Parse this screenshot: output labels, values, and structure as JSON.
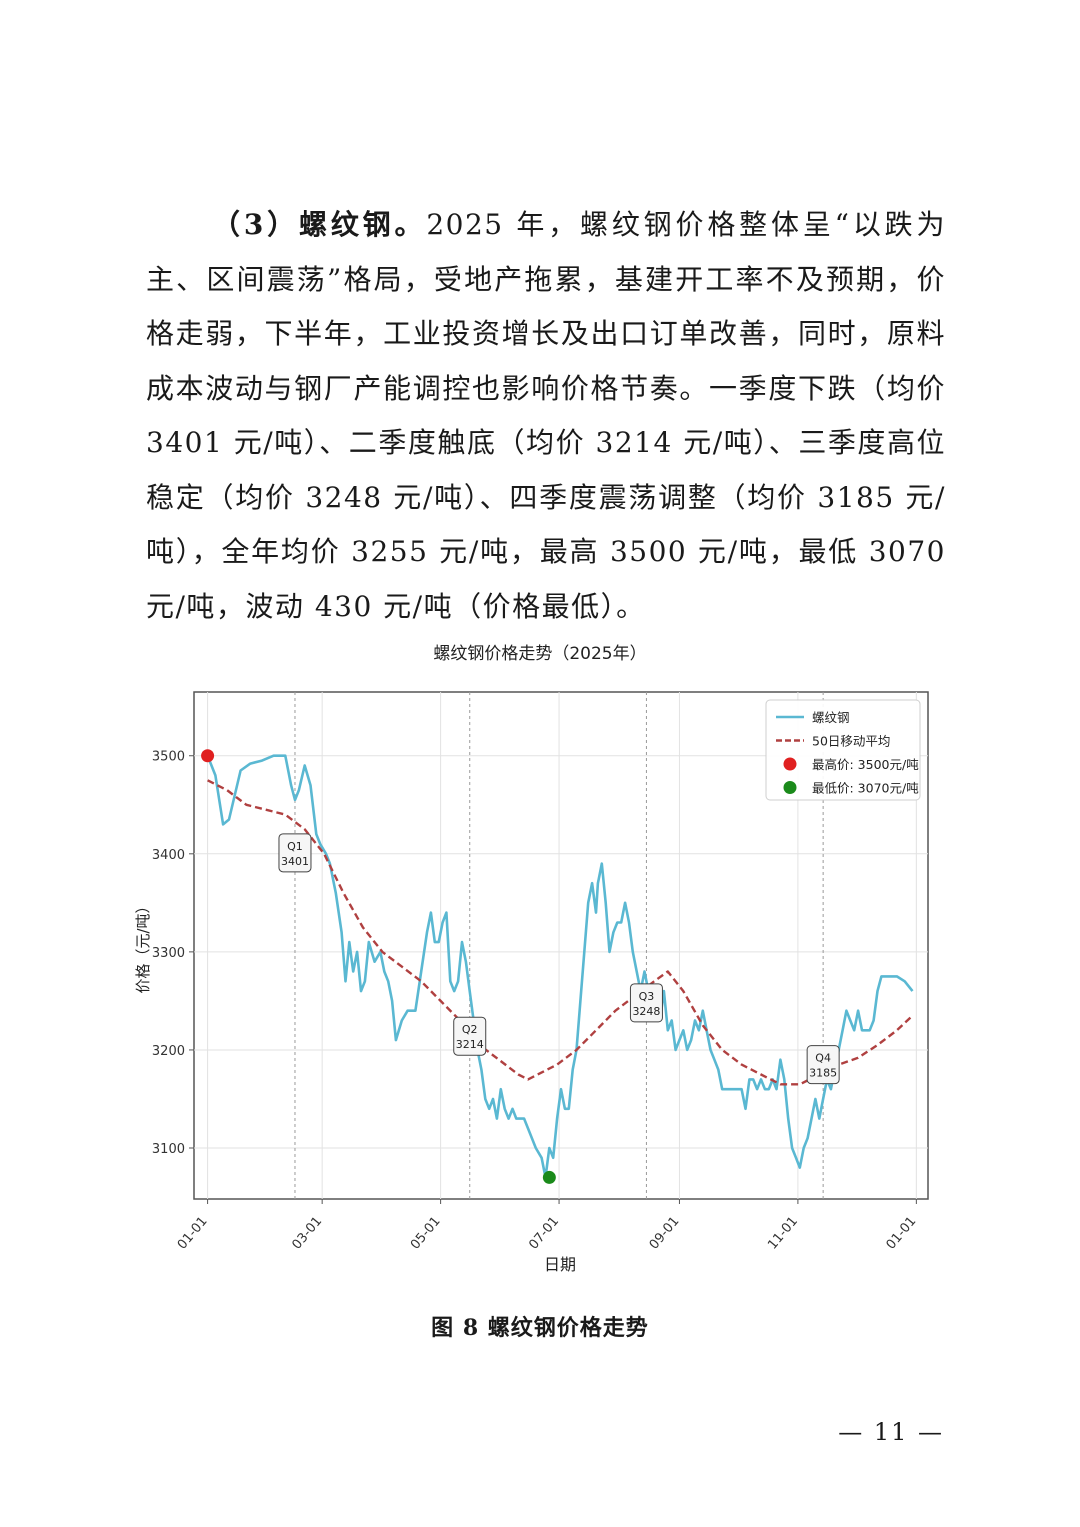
{
  "paragraph": {
    "lead": "（3）螺纹钢。",
    "body": "2025 年，螺纹钢价格整体呈“以跌为主、区间震荡”格局，受地产拖累，基建开工率不及预期，价格走弱，下半年，工业投资增长及出口订单改善，同时，原料成本波动与钢厂产能调控也影响价格节奏。一季度下跌（均价 3401 元/吨）、二季度触底（均价 3214 元/吨）、三季度高位稳定（均价 3248 元/吨）、四季度震荡调整（均价 3185 元/吨），全年均价 3255 元/吨，最高 3500 元/吨，最低 3070 元/吨，波动 430 元/吨（价格最低）。"
  },
  "caption": "图 8   螺纹钢价格走势",
  "page_number": "— 11 —",
  "chart_data": {
    "type": "line",
    "title": "螺纹钢价格走势（2025年）",
    "xlabel": "日期",
    "ylabel": "价格（元/吨）",
    "ylim": [
      3048,
      3565
    ],
    "xlim_days": [
      -7,
      371
    ],
    "x_ticks": [
      {
        "label": "01-01",
        "day": 0
      },
      {
        "label": "03-01",
        "day": 59
      },
      {
        "label": "05-01",
        "day": 120
      },
      {
        "label": "07-01",
        "day": 181
      },
      {
        "label": "09-01",
        "day": 243
      },
      {
        "label": "11-01",
        "day": 304
      },
      {
        "label": "01-01",
        "day": 365
      }
    ],
    "y_ticks": [
      3100,
      3200,
      3300,
      3400,
      3500
    ],
    "grid": true,
    "legend_position": "top-right",
    "series": [
      {
        "name": "螺纹钢",
        "color": "#5ab8d2",
        "points": [
          [
            0,
            3500
          ],
          [
            4,
            3480
          ],
          [
            8,
            3430
          ],
          [
            11,
            3435
          ],
          [
            14,
            3460
          ],
          [
            17,
            3485
          ],
          [
            22,
            3492
          ],
          [
            28,
            3495
          ],
          [
            34,
            3500
          ],
          [
            40,
            3500
          ],
          [
            43,
            3470
          ],
          [
            45,
            3455
          ],
          [
            47,
            3465
          ],
          [
            50,
            3490
          ],
          [
            53,
            3470
          ],
          [
            56,
            3420
          ],
          [
            58,
            3410
          ],
          [
            61,
            3400
          ],
          [
            63,
            3390
          ],
          [
            66,
            3360
          ],
          [
            69,
            3320
          ],
          [
            71,
            3270
          ],
          [
            73,
            3310
          ],
          [
            75,
            3280
          ],
          [
            77,
            3300
          ],
          [
            79,
            3260
          ],
          [
            81,
            3270
          ],
          [
            83,
            3310
          ],
          [
            86,
            3290
          ],
          [
            89,
            3300
          ],
          [
            91,
            3280
          ],
          [
            93,
            3270
          ],
          [
            95,
            3250
          ],
          [
            97,
            3210
          ],
          [
            100,
            3230
          ],
          [
            103,
            3240
          ],
          [
            107,
            3240
          ],
          [
            110,
            3280
          ],
          [
            113,
            3320
          ],
          [
            115,
            3340
          ],
          [
            117,
            3310
          ],
          [
            119,
            3310
          ],
          [
            121,
            3330
          ],
          [
            123,
            3340
          ],
          [
            125,
            3270
          ],
          [
            127,
            3260
          ],
          [
            129,
            3270
          ],
          [
            131,
            3310
          ],
          [
            133,
            3290
          ],
          [
            135,
            3260
          ],
          [
            137,
            3230
          ],
          [
            139,
            3200
          ],
          [
            141,
            3180
          ],
          [
            143,
            3150
          ],
          [
            145,
            3140
          ],
          [
            147,
            3150
          ],
          [
            149,
            3130
          ],
          [
            151,
            3160
          ],
          [
            153,
            3140
          ],
          [
            155,
            3130
          ],
          [
            157,
            3140
          ],
          [
            159,
            3130
          ],
          [
            161,
            3130
          ],
          [
            163,
            3130
          ],
          [
            165,
            3120
          ],
          [
            167,
            3110
          ],
          [
            169,
            3100
          ],
          [
            172,
            3090
          ],
          [
            174,
            3070
          ],
          [
            176,
            3100
          ],
          [
            178,
            3090
          ],
          [
            180,
            3130
          ],
          [
            182,
            3160
          ],
          [
            184,
            3140
          ],
          [
            186,
            3140
          ],
          [
            188,
            3180
          ],
          [
            190,
            3200
          ],
          [
            192,
            3250
          ],
          [
            194,
            3300
          ],
          [
            196,
            3350
          ],
          [
            198,
            3370
          ],
          [
            200,
            3340
          ],
          [
            201,
            3370
          ],
          [
            203,
            3390
          ],
          [
            205,
            3350
          ],
          [
            207,
            3300
          ],
          [
            209,
            3320
          ],
          [
            211,
            3330
          ],
          [
            213,
            3330
          ],
          [
            215,
            3350
          ],
          [
            217,
            3330
          ],
          [
            219,
            3300
          ],
          [
            221,
            3280
          ],
          [
            223,
            3260
          ],
          [
            225,
            3280
          ],
          [
            227,
            3260
          ],
          [
            229,
            3250
          ],
          [
            231,
            3240
          ],
          [
            233,
            3230
          ],
          [
            235,
            3260
          ],
          [
            237,
            3220
          ],
          [
            239,
            3230
          ],
          [
            241,
            3200
          ],
          [
            243,
            3210
          ],
          [
            245,
            3220
          ],
          [
            247,
            3200
          ],
          [
            249,
            3210
          ],
          [
            251,
            3230
          ],
          [
            253,
            3220
          ],
          [
            255,
            3240
          ],
          [
            257,
            3220
          ],
          [
            259,
            3200
          ],
          [
            261,
            3190
          ],
          [
            263,
            3180
          ],
          [
            265,
            3160
          ],
          [
            267,
            3160
          ],
          [
            269,
            3160
          ],
          [
            271,
            3160
          ],
          [
            273,
            3160
          ],
          [
            275,
            3160
          ],
          [
            277,
            3140
          ],
          [
            279,
            3170
          ],
          [
            281,
            3170
          ],
          [
            283,
            3160
          ],
          [
            285,
            3170
          ],
          [
            287,
            3160
          ],
          [
            289,
            3160
          ],
          [
            291,
            3170
          ],
          [
            293,
            3160
          ],
          [
            295,
            3190
          ],
          [
            297,
            3170
          ],
          [
            299,
            3130
          ],
          [
            301,
            3100
          ],
          [
            303,
            3090
          ],
          [
            305,
            3080
          ],
          [
            307,
            3100
          ],
          [
            309,
            3110
          ],
          [
            311,
            3130
          ],
          [
            313,
            3150
          ],
          [
            315,
            3130
          ],
          [
            317,
            3150
          ],
          [
            319,
            3170
          ],
          [
            321,
            3160
          ],
          [
            323,
            3180
          ],
          [
            325,
            3200
          ],
          [
            327,
            3220
          ],
          [
            329,
            3240
          ],
          [
            331,
            3230
          ],
          [
            333,
            3220
          ],
          [
            335,
            3240
          ],
          [
            337,
            3220
          ],
          [
            339,
            3220
          ],
          [
            341,
            3220
          ],
          [
            343,
            3230
          ],
          [
            345,
            3260
          ],
          [
            347,
            3275
          ],
          [
            351,
            3275
          ],
          [
            355,
            3275
          ],
          [
            359,
            3270
          ],
          [
            363,
            3260
          ]
        ]
      },
      {
        "name": "50日移动平均",
        "color": "#b04040",
        "points": [
          [
            0,
            3475
          ],
          [
            10,
            3465
          ],
          [
            20,
            3450
          ],
          [
            30,
            3445
          ],
          [
            40,
            3440
          ],
          [
            50,
            3425
          ],
          [
            60,
            3400
          ],
          [
            70,
            3360
          ],
          [
            80,
            3325
          ],
          [
            90,
            3300
          ],
          [
            100,
            3285
          ],
          [
            110,
            3270
          ],
          [
            120,
            3250
          ],
          [
            130,
            3230
          ],
          [
            140,
            3205
          ],
          [
            150,
            3190
          ],
          [
            160,
            3175
          ],
          [
            165,
            3170
          ],
          [
            170,
            3175
          ],
          [
            180,
            3185
          ],
          [
            190,
            3200
          ],
          [
            200,
            3220
          ],
          [
            210,
            3240
          ],
          [
            220,
            3255
          ],
          [
            230,
            3270
          ],
          [
            237,
            3280
          ],
          [
            245,
            3260
          ],
          [
            255,
            3225
          ],
          [
            265,
            3200
          ],
          [
            275,
            3185
          ],
          [
            285,
            3175
          ],
          [
            295,
            3165
          ],
          [
            305,
            3165
          ],
          [
            315,
            3175
          ],
          [
            325,
            3185
          ],
          [
            335,
            3192
          ],
          [
            345,
            3205
          ],
          [
            355,
            3220
          ],
          [
            363,
            3235
          ]
        ]
      }
    ],
    "markers": [
      {
        "name": "最高价: 3500元/吨",
        "day": 0,
        "value": 3500,
        "color": "#e02020"
      },
      {
        "name": "最低价: 3070元/吨",
        "day": 176,
        "value": 3070,
        "color": "#1a8a1a"
      }
    ],
    "quarter_lines": [
      {
        "day": 45,
        "label": "Q1",
        "value_label": "3401",
        "value": 3401
      },
      {
        "day": 135,
        "label": "Q2",
        "value_label": "3214",
        "value": 3214
      },
      {
        "day": 226,
        "label": "Q3",
        "value_label": "3248",
        "value": 3248
      },
      {
        "day": 317,
        "label": "Q4",
        "value_label": "3185",
        "value": 3185
      }
    ]
  }
}
